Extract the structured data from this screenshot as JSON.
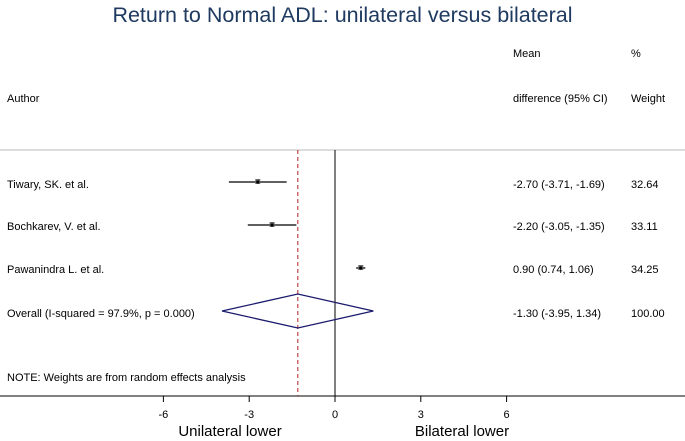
{
  "chart_data": {
    "type": "forest",
    "title": "Return to Normal ADL: unilateral versus bilateral",
    "column_headers": {
      "author": "Author",
      "effect_line1": "Mean",
      "effect_line2": "difference (95% CI)",
      "weight_line1": "%",
      "weight_line2": "Weight"
    },
    "studies": [
      {
        "label": "Tiwary, SK. et al.",
        "estimate": -2.7,
        "lower": -3.71,
        "upper": -1.69,
        "ci_text": "-2.70 (-3.71, -1.69)",
        "weight_text": "32.64"
      },
      {
        "label": "Bochkarev, V. et al.",
        "estimate": -2.2,
        "lower": -3.05,
        "upper": -1.35,
        "ci_text": "-2.20 (-3.05, -1.35)",
        "weight_text": "33.11"
      },
      {
        "label": "Pawanindra L. et al.",
        "estimate": 0.9,
        "lower": 0.74,
        "upper": 1.06,
        "ci_text": "0.90 (0.74, 1.06)",
        "weight_text": "34.25"
      }
    ],
    "overall": {
      "label": "Overall  (I-squared = 97.9%, p = 0.000)",
      "estimate": -1.3,
      "lower": -3.95,
      "upper": 1.34,
      "ci_text": "-1.30 (-3.95, 1.34)",
      "weight_text": "100.00"
    },
    "note": "NOTE: Weights are from random effects analysis",
    "x_ticks": [
      -6,
      -3,
      0,
      3,
      6
    ],
    "x_tick_labels": [
      "-6",
      "-3",
      "0",
      "3",
      "6"
    ],
    "xlim": [
      -6,
      6
    ],
    "null_line": 0,
    "left_label": "Unilateral lower",
    "right_label": "Bilateral lower",
    "colors": {
      "title": "#1f3a60",
      "diamond": "#1a1a6e",
      "overall_line": "#b22222"
    }
  }
}
